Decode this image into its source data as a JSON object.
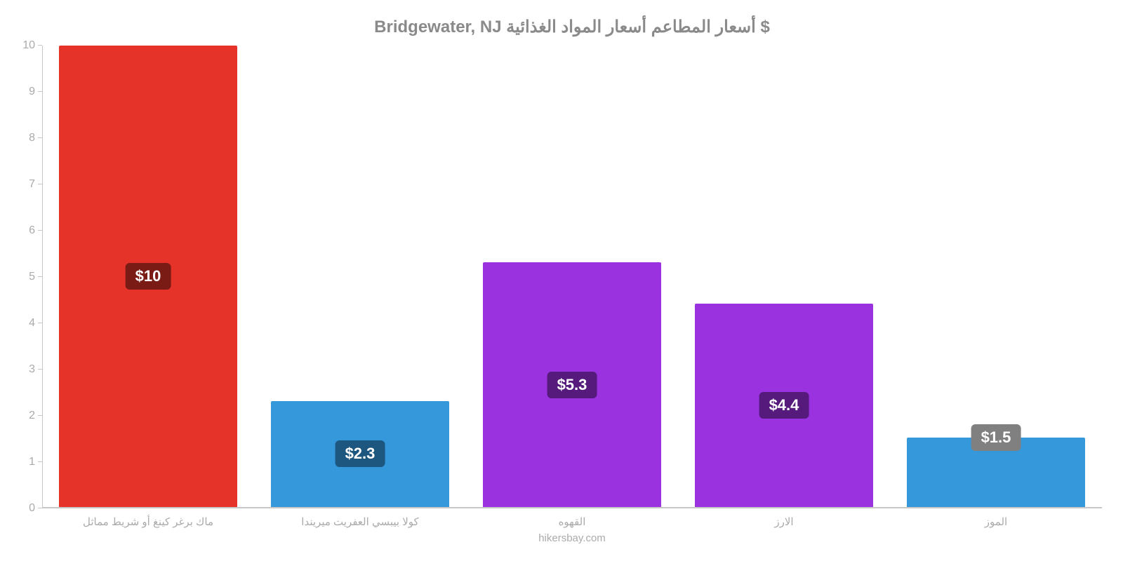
{
  "chart": {
    "type": "bar",
    "title": "Bridgewater, NJ أسعار المطاعم أسعار المواد الغذائية $",
    "title_color": "#8a8a8a",
    "title_fontsize": 24,
    "background_color": "#ffffff",
    "ylim": [
      0,
      10
    ],
    "ytick_step": 1,
    "ytick_color": "#aaaaaa",
    "ytick_fontsize": 16,
    "axis_color": "#c7c7c7",
    "bar_width": 0.84,
    "xlabel_color": "#aaaaaa",
    "xlabel_fontsize": 15,
    "credit": "hikersbay.com",
    "credit_color": "#aaaaaa",
    "value_label_fontsize": 22,
    "value_label_text_color": "#ffffff",
    "categories": [
      "ماك برغر كينغ أو شريط مماثل",
      "كولا بيبسي العفريت ميريندا",
      "القهوه",
      "الارز",
      "الموز"
    ],
    "values": [
      10,
      2.3,
      5.3,
      4.4,
      1.5
    ],
    "value_labels": [
      "$10",
      "$2.3",
      "$5.3",
      "$4.4",
      "$1.5"
    ],
    "bar_colors": [
      "#e6332a",
      "#3498db",
      "#9b32e0",
      "#9b32e0",
      "#3498db"
    ],
    "value_label_bg": [
      "#7a1b16",
      "#1d567e",
      "#551a7c",
      "#551a7c",
      "#808080"
    ],
    "value_label_offset": [
      "center",
      "center",
      "center",
      "center",
      "top"
    ]
  }
}
